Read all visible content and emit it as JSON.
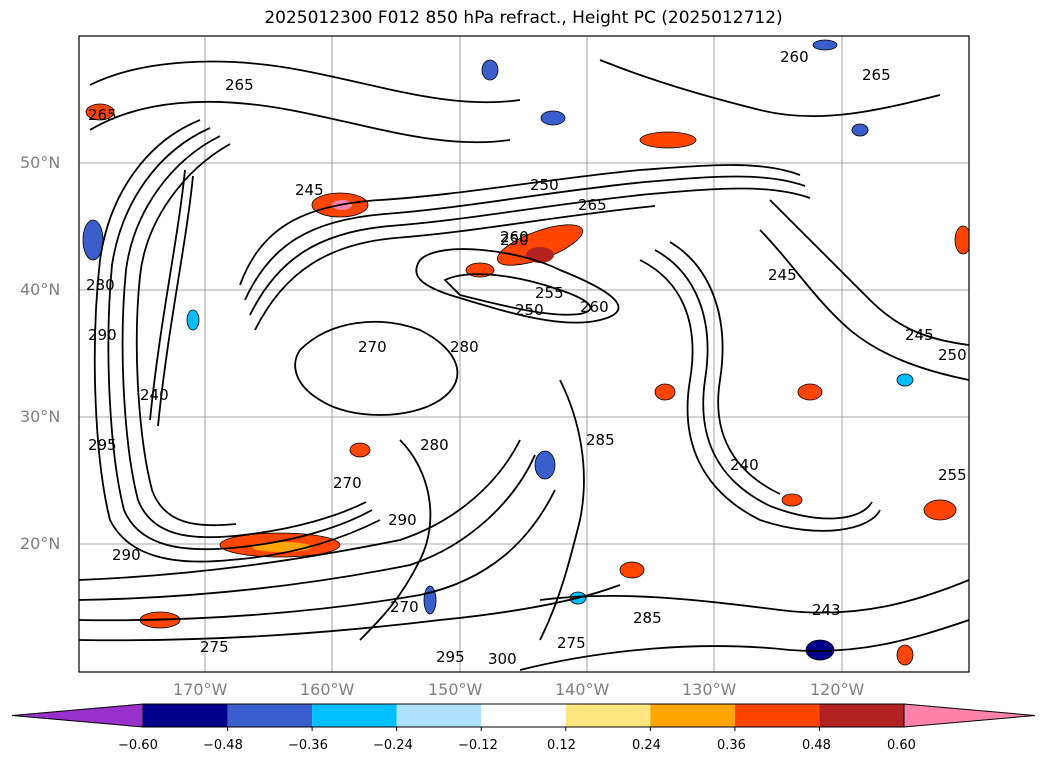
{
  "title": "2025012300 F012 850 hPa refract., Height PC (2025012712)",
  "map": {
    "lat_labels": [
      "50°N",
      "40°N",
      "30°N",
      "20°N"
    ],
    "lon_labels": [
      "170°W",
      "160°W",
      "150°W",
      "140°W",
      "130°W",
      "120°W"
    ],
    "contour_labels": [
      "265",
      "265",
      "260",
      "265",
      "245",
      "250",
      "250",
      "265",
      "260",
      "255",
      "260",
      "250",
      "270",
      "280",
      "280",
      "290",
      "240",
      "295",
      "290",
      "270",
      "280",
      "290",
      "270",
      "295",
      "300",
      "275",
      "285",
      "243",
      "245",
      "250",
      "245",
      "255",
      "275",
      "240",
      "285"
    ]
  },
  "colorbar": {
    "ticks": [
      "−0.60",
      "−0.48",
      "−0.36",
      "−0.24",
      "−0.12",
      "0.12",
      "0.24",
      "0.36",
      "0.48",
      "0.60"
    ],
    "colors": [
      "#9932CC",
      "#00008B",
      "#3A5FCD",
      "#00BFFF",
      "#B0E2FF",
      "#FFFFFF",
      "#FFE680",
      "#FFA500",
      "#FF4500",
      "#B22222",
      "#FF82AB"
    ]
  }
}
